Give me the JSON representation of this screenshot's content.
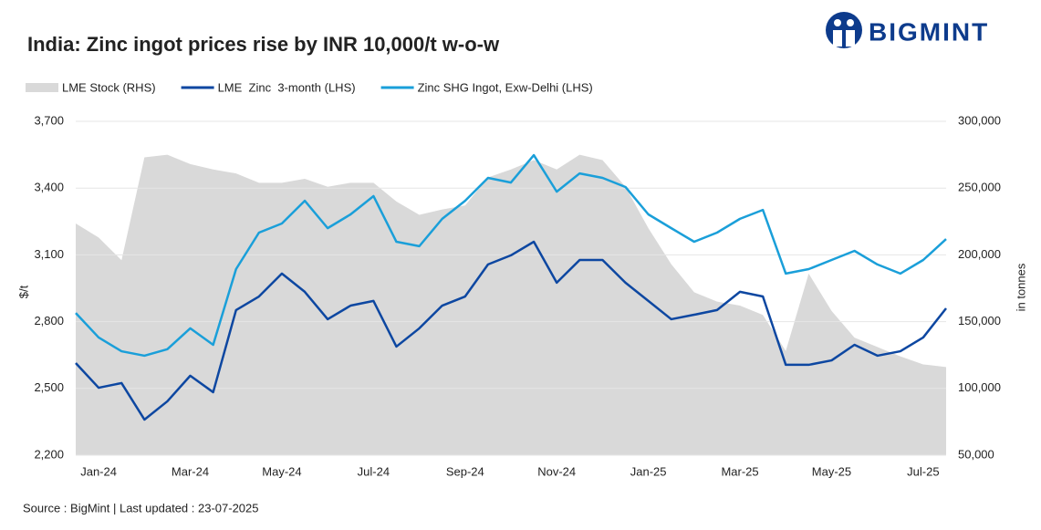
{
  "logo": "BIGMINT",
  "source": "Source : BigMint | Last updated : 23-07-2025",
  "chart_data": {
    "type": "line",
    "title": "India: Zinc ingot prices rise by INR 10,000/t w-o-w",
    "ylabel": "$/t",
    "y2label": "in tonnes",
    "grid": true,
    "legend": "top",
    "categories": [
      null,
      "Jan-24",
      null,
      null,
      null,
      "Mar-24",
      null,
      null,
      null,
      "May-24",
      null,
      null,
      null,
      "Jul-24",
      null,
      null,
      null,
      "Sep-24",
      null,
      null,
      null,
      "Nov-24",
      null,
      null,
      null,
      "Jan-25",
      null,
      null,
      null,
      "Mar-25",
      null,
      null,
      null,
      "May-25",
      null,
      null,
      null,
      "Jul-25",
      null
    ],
    "ylim": [
      2200,
      3700
    ],
    "yticks": [
      {
        "value": 2200,
        "label": "2,200"
      },
      {
        "value": 2500,
        "label": "2,500"
      },
      {
        "value": 2800,
        "label": "2,800"
      },
      {
        "value": 3100,
        "label": "3,100"
      },
      {
        "value": 3400,
        "label": "3,400"
      },
      {
        "value": 3700,
        "label": "3,700"
      }
    ],
    "y2lim": [
      50000,
      300000
    ],
    "y2ticks": [
      {
        "value": 50000,
        "label": "50,000"
      },
      {
        "value": 100000,
        "label": "100,000"
      },
      {
        "value": 150000,
        "label": "150,000"
      },
      {
        "value": 200000,
        "label": "200,000"
      },
      {
        "value": 250000,
        "label": "250,000"
      },
      {
        "value": 300000,
        "label": "300,000"
      }
    ],
    "series": [
      {
        "name": "LME Stock (RHS)",
        "type": "area",
        "axis": "y2",
        "color": "#d9d9d9",
        "values": [
          223500,
          213000,
          196000,
          273000,
          275000,
          268000,
          264000,
          261000,
          254000,
          254000,
          257000,
          251000,
          254000,
          254000,
          240000,
          230000,
          234000,
          237000,
          258000,
          264000,
          271000,
          264000,
          275000,
          271000,
          251000,
          220000,
          193000,
          172000,
          165000,
          162000,
          155000,
          128000,
          186000,
          158000,
          138000,
          131000,
          124000,
          118000,
          116000
        ]
      },
      {
        "name": "LME  Zinc  3-month (LHS)",
        "type": "line",
        "color": "#0d47a1",
        "values": [
          2614,
          2503,
          2524,
          2360,
          2442,
          2557,
          2483,
          2852,
          2913,
          3016,
          2934,
          2811,
          2872,
          2893,
          2688,
          2770,
          2872,
          2913,
          3057,
          3098,
          3159,
          2975,
          3077,
          3077,
          2975,
          2893,
          2811,
          2831,
          2852,
          2934,
          2913,
          2606,
          2606,
          2626,
          2696,
          2647,
          2667,
          2729,
          2860
        ]
      },
      {
        "name": "Zinc SHG Ingot, Exw-Delhi (LHS)",
        "type": "line",
        "color": "#1a9fd9",
        "values": [
          2839,
          2729,
          2667,
          2647,
          2676,
          2770,
          2696,
          3036,
          3200,
          3241,
          3343,
          3220,
          3282,
          3364,
          3159,
          3139,
          3262,
          3343,
          3446,
          3425,
          3548,
          3384,
          3466,
          3446,
          3405,
          3282,
          3220,
          3159,
          3200,
          3262,
          3302,
          3016,
          3036,
          3077,
          3118,
          3057,
          3016,
          3077,
          3171
        ]
      }
    ]
  }
}
